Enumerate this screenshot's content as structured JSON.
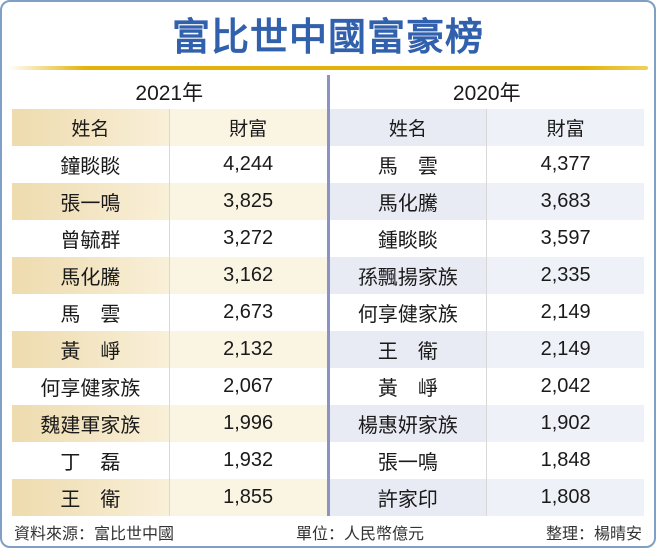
{
  "page": {
    "title": "富比世中國富豪榜"
  },
  "colors": {
    "border": "#7fa0c4",
    "title_blue": "#3160ad",
    "gold": "#e3b30b",
    "divider_blue": "#8a92c6",
    "grid_line": "#d8d8d8",
    "left_name_shade_start": "#eedbae",
    "left_name_shade_end": "#f9f0d9",
    "left_wealth_shade": "#faf4e3",
    "right_name_shade": "#e8ebf3",
    "right_wealth_shade": "#eef1f7",
    "text_dark": "#1a1a1a",
    "footer_text": "#333333"
  },
  "tables": [
    {
      "year": "2021年",
      "headers": {
        "name": "姓名",
        "wealth": "財富"
      },
      "rows": [
        {
          "name": "鐘睒睒",
          "wealth": "4,244"
        },
        {
          "name": "張一鳴",
          "wealth": "3,825"
        },
        {
          "name": "曾毓群",
          "wealth": "3,272"
        },
        {
          "name": "馬化騰",
          "wealth": "3,162"
        },
        {
          "name": "馬　雲",
          "wealth": "2,673"
        },
        {
          "name": "黃　崢",
          "wealth": "2,132"
        },
        {
          "name": "何享健家族",
          "wealth": "2,067"
        },
        {
          "name": "魏建軍家族",
          "wealth": "1,996"
        },
        {
          "name": "丁　磊",
          "wealth": "1,932"
        },
        {
          "name": "王　衛",
          "wealth": "1,855"
        }
      ]
    },
    {
      "year": "2020年",
      "headers": {
        "name": "姓名",
        "wealth": "財富"
      },
      "rows": [
        {
          "name": "馬　雲",
          "wealth": "4,377"
        },
        {
          "name": "馬化騰",
          "wealth": "3,683"
        },
        {
          "name": "鍾睒睒",
          "wealth": "3,597"
        },
        {
          "name": "孫飄揚家族",
          "wealth": "2,335"
        },
        {
          "name": "何享健家族",
          "wealth": "2,149"
        },
        {
          "name": "王　衛",
          "wealth": "2,149"
        },
        {
          "name": "黃　崢",
          "wealth": "2,042"
        },
        {
          "name": "楊惠妍家族",
          "wealth": "1,902"
        },
        {
          "name": "張一鳴",
          "wealth": "1,848"
        },
        {
          "name": "許家印",
          "wealth": "1,808"
        }
      ]
    }
  ],
  "footer": {
    "source": "資料來源：富比世中國",
    "unit": "單位：人民幣億元",
    "credit": "整理：楊晴安"
  },
  "chart_data": {
    "type": "table",
    "title": "富比世中國富豪榜",
    "unit": "人民幣億元",
    "source": "富比世中國",
    "credit": "楊晴安",
    "tables": [
      {
        "year": "2021",
        "columns": [
          "姓名",
          "財富"
        ],
        "rows": [
          [
            "鐘睒睒",
            4244
          ],
          [
            "張一鳴",
            3825
          ],
          [
            "曾毓群",
            3272
          ],
          [
            "馬化騰",
            3162
          ],
          [
            "馬雲",
            2673
          ],
          [
            "黃崢",
            2132
          ],
          [
            "何享健家族",
            2067
          ],
          [
            "魏建軍家族",
            1996
          ],
          [
            "丁磊",
            1932
          ],
          [
            "王衛",
            1855
          ]
        ]
      },
      {
        "year": "2020",
        "columns": [
          "姓名",
          "財富"
        ],
        "rows": [
          [
            "馬雲",
            4377
          ],
          [
            "馬化騰",
            3683
          ],
          [
            "鍾睒睒",
            3597
          ],
          [
            "孫飄揚家族",
            2335
          ],
          [
            "何享健家族",
            2149
          ],
          [
            "王衛",
            2149
          ],
          [
            "黃崢",
            2042
          ],
          [
            "楊惠妍家族",
            1902
          ],
          [
            "張一鳴",
            1848
          ],
          [
            "許家印",
            1808
          ]
        ]
      }
    ]
  }
}
